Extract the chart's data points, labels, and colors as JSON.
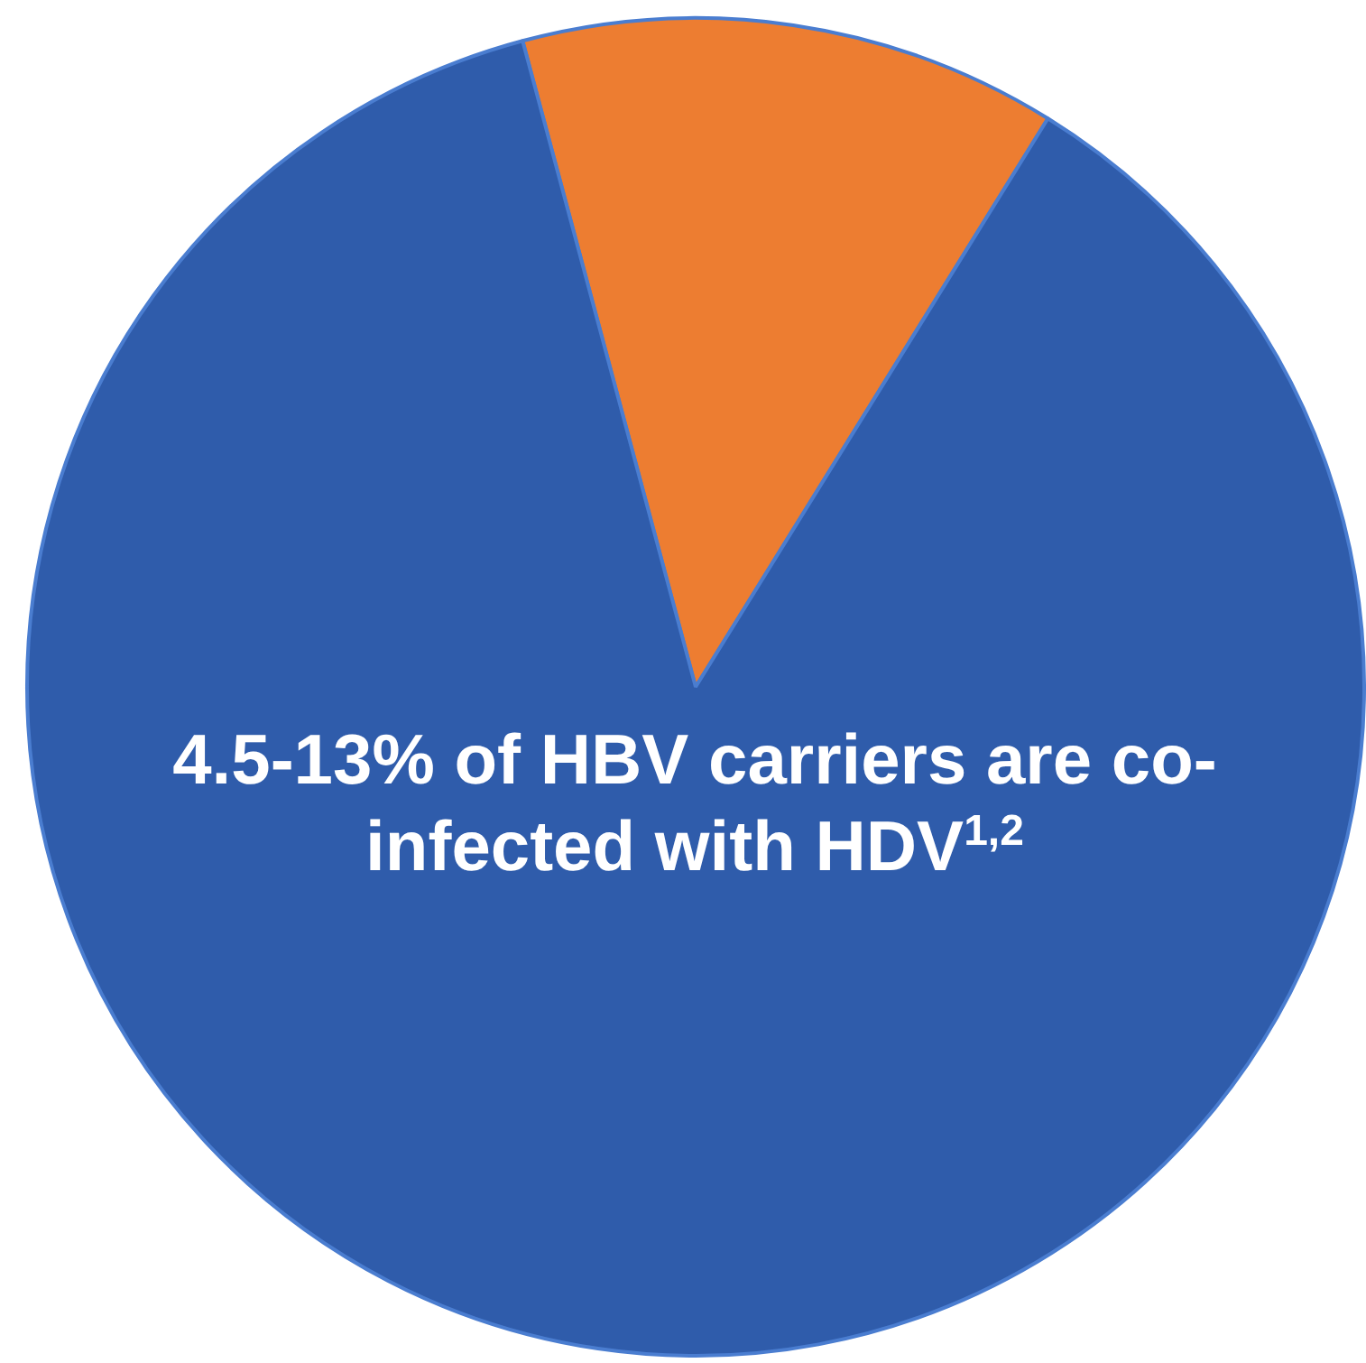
{
  "chart_data": {
    "type": "pie",
    "categories": [
      null,
      null
    ],
    "values": [
      13,
      87
    ],
    "colors": [
      "#ed7d31",
      "#2f5cab"
    ],
    "annotations": [
      "4.5-13% of HBV carriers are co-infected with HDV$^{1,2}$"
    ]
  }
}
